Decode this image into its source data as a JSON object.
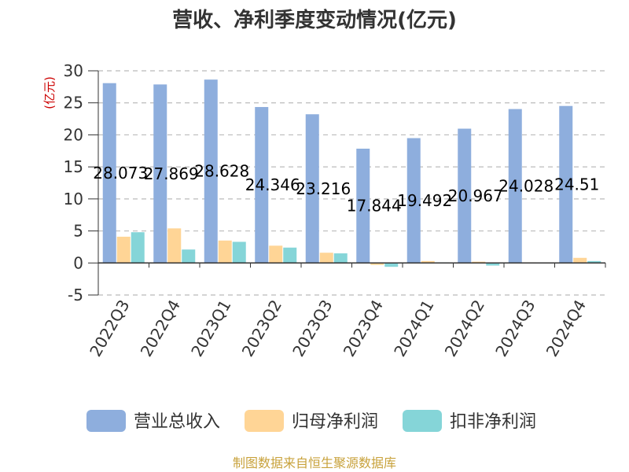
{
  "chart_data": {
    "type": "bar",
    "title": "营收、净利季度变动情况(亿元)",
    "unit_label": "(亿元)",
    "categories": [
      "2022Q3",
      "2022Q4",
      "2023Q1",
      "2023Q2",
      "2023Q3",
      "2023Q4",
      "2024Q1",
      "2024Q2",
      "2024Q3",
      "2024Q4"
    ],
    "series": [
      {
        "name": "营业总收入",
        "color": "#8eaedd",
        "values": [
          28.073,
          27.869,
          28.628,
          24.346,
          23.216,
          17.844,
          19.492,
          20.967,
          24.028,
          24.51
        ]
      },
      {
        "name": "归母净利润",
        "color": "#ffd596",
        "values": [
          4.1,
          5.4,
          3.5,
          2.7,
          1.6,
          -0.3,
          0.3,
          0.2,
          0.1,
          0.8
        ]
      },
      {
        "name": "扣非净利润",
        "color": "#85d5d8",
        "values": [
          4.8,
          2.1,
          3.3,
          2.4,
          1.5,
          -0.6,
          0.1,
          -0.4,
          0.05,
          0.3
        ]
      }
    ],
    "data_labels": [
      "28.073",
      "27.869",
      "28.628",
      "24.346",
      "23.216",
      "17.844",
      "19.492",
      "20.967",
      "24.028",
      "24.51"
    ],
    "yticks": [
      30,
      25,
      20,
      15,
      10,
      5,
      0,
      -5
    ],
    "ylim": [
      -5,
      30
    ],
    "grid": true,
    "legend_position": "bottom"
  },
  "footer": {
    "source": "制图数据来自恒生聚源数据库"
  }
}
